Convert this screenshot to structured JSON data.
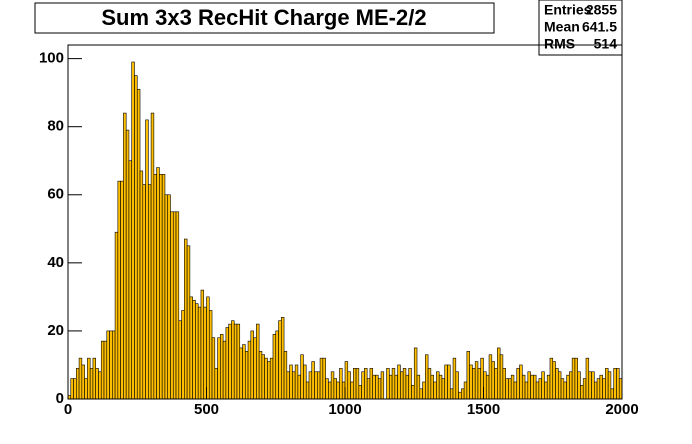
{
  "chart_data": {
    "type": "histogram",
    "title": "Sum 3x3 RecHit Charge ME-2/2",
    "stats": [
      {
        "label": "Entries",
        "value": 2855
      },
      {
        "label": "Mean",
        "value": 641.5
      },
      {
        "label": "RMS",
        "value": 514
      }
    ],
    "color": "#ffbf00",
    "bins": [
      0,
      10,
      20,
      30,
      40,
      50,
      60,
      70,
      80,
      90,
      100,
      110,
      120,
      130,
      140,
      150,
      160,
      170,
      180,
      190,
      200,
      210,
      220,
      230,
      240,
      250,
      260,
      270,
      280,
      290,
      300,
      310,
      320,
      330,
      340,
      350,
      360,
      370,
      380,
      390,
      400,
      410,
      420,
      430,
      440,
      450,
      460,
      470,
      480,
      490,
      500,
      510,
      520,
      530,
      540,
      550,
      560,
      570,
      580,
      590,
      600,
      610,
      620,
      630,
      640,
      650,
      660,
      670,
      680,
      690,
      700,
      710,
      720,
      730,
      740,
      750,
      760,
      770,
      780,
      790,
      800,
      810,
      820,
      830,
      840,
      850,
      860,
      870,
      880,
      890,
      900,
      910,
      920,
      930,
      940,
      950,
      960,
      970,
      980,
      990,
      1000,
      1010,
      1020,
      1030,
      1040,
      1050,
      1060,
      1070,
      1080,
      1090,
      1100,
      1110,
      1120,
      1130,
      1140,
      1150,
      1160,
      1170,
      1180,
      1190,
      1200,
      1210,
      1220,
      1230,
      1240,
      1250,
      1260,
      1270,
      1280,
      1290,
      1300,
      1310,
      1320,
      1330,
      1340,
      1350,
      1360,
      1370,
      1380,
      1390,
      1400,
      1410,
      1420,
      1430,
      1440,
      1450,
      1460,
      1470,
      1480,
      1490,
      1500,
      1510,
      1520,
      1530,
      1540,
      1550,
      1560,
      1570,
      1580,
      1590,
      1600,
      1610,
      1620,
      1630,
      1640,
      1650,
      1660,
      1670,
      1680,
      1690,
      1700,
      1710,
      1720,
      1730,
      1740,
      1750,
      1760,
      1770,
      1780,
      1790,
      1800,
      1810,
      1820,
      1830,
      1840,
      1850,
      1860,
      1870,
      1880,
      1890,
      1900,
      1910,
      1920,
      1930,
      1940,
      1950,
      1960,
      1970,
      1980,
      1990,
      2000
    ],
    "values": [
      1,
      6,
      6,
      9,
      12,
      10,
      6,
      12,
      9,
      12,
      9,
      8,
      17,
      17,
      20,
      20,
      20,
      49,
      64,
      64,
      84,
      79,
      70,
      99,
      95,
      91,
      67,
      63,
      82,
      63,
      84,
      66,
      68,
      66,
      66,
      60,
      60,
      55,
      55,
      55,
      23,
      26,
      47,
      45,
      30,
      29,
      28,
      27,
      32,
      27,
      30,
      26,
      18,
      9,
      18,
      19,
      17,
      21,
      22,
      23,
      22,
      22,
      15,
      16,
      14,
      17,
      20,
      18,
      22,
      14,
      13,
      12,
      11,
      12,
      19,
      20,
      23,
      24,
      14,
      8,
      10,
      8,
      10,
      7,
      13,
      10,
      5,
      8,
      11,
      8,
      8,
      12,
      12,
      6,
      5,
      8,
      6,
      5,
      9,
      5,
      11,
      8,
      5,
      9,
      9,
      4,
      8,
      9,
      6,
      9,
      7,
      7,
      6,
      8,
      0,
      9,
      7,
      9,
      7,
      10,
      8,
      9,
      7,
      9,
      4,
      15,
      7,
      3,
      5,
      13,
      9,
      7,
      5,
      8,
      7,
      6,
      10,
      10,
      3,
      12,
      8,
      2,
      3,
      5,
      14,
      10,
      9,
      11,
      9,
      12,
      8,
      7,
      13,
      11,
      9,
      15,
      13,
      9,
      6,
      6,
      7,
      5,
      9,
      10,
      7,
      5,
      8,
      7,
      7,
      5,
      6,
      8,
      5,
      7,
      12,
      11,
      9,
      8,
      6,
      5,
      7,
      8,
      12,
      12,
      8,
      4,
      6,
      12,
      8,
      8,
      5,
      6,
      7,
      6,
      9,
      8,
      3,
      9,
      9,
      6
    ],
    "xlim": [
      0,
      2000
    ],
    "xticks": [
      0,
      500,
      1000,
      1500,
      2000
    ],
    "ylim": [
      0,
      104
    ],
    "yticks": [
      0,
      20,
      40,
      60,
      80,
      100
    ]
  }
}
